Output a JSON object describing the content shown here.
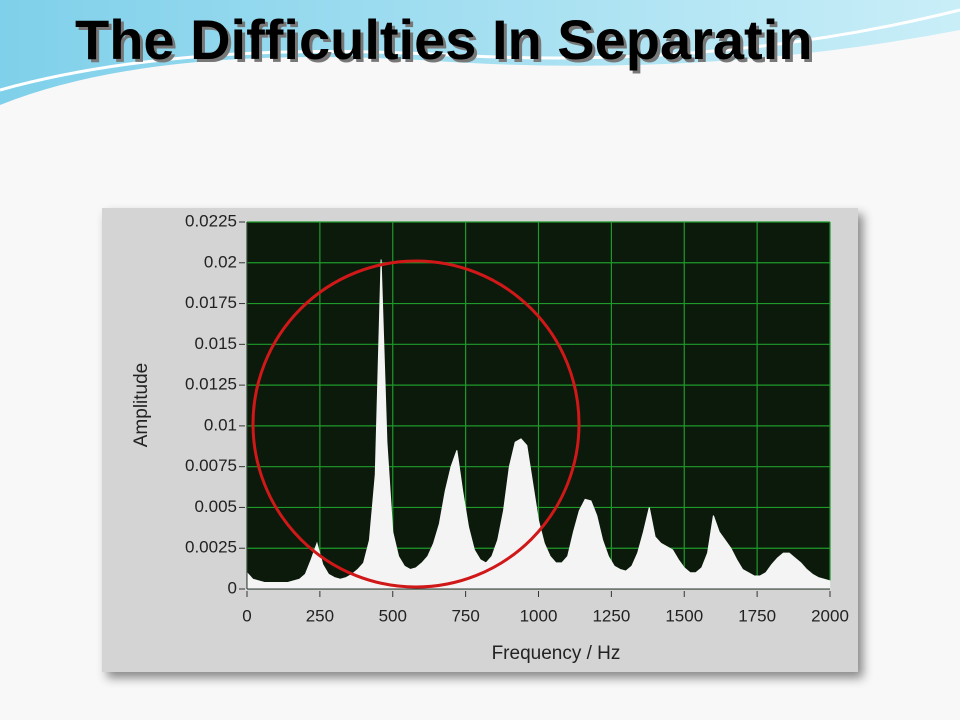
{
  "slide": {
    "title": "The Difficulties In Separatin"
  },
  "chart_data": {
    "type": "area",
    "x_label": "Frequency / Hz",
    "y_label": "Amplitude",
    "x": [
      0,
      20,
      40,
      60,
      80,
      100,
      120,
      140,
      160,
      180,
      200,
      220,
      240,
      260,
      280,
      300,
      320,
      340,
      360,
      380,
      400,
      420,
      440,
      460,
      480,
      500,
      520,
      540,
      560,
      580,
      600,
      620,
      640,
      660,
      680,
      700,
      720,
      740,
      760,
      780,
      800,
      820,
      840,
      860,
      880,
      900,
      920,
      940,
      960,
      980,
      1000,
      1020,
      1040,
      1060,
      1080,
      1100,
      1120,
      1140,
      1160,
      1180,
      1200,
      1220,
      1240,
      1260,
      1280,
      1300,
      1320,
      1340,
      1360,
      1380,
      1400,
      1420,
      1440,
      1460,
      1480,
      1500,
      1520,
      1540,
      1560,
      1580,
      1600,
      1620,
      1640,
      1660,
      1680,
      1700,
      1720,
      1740,
      1760,
      1780,
      1800,
      1820,
      1840,
      1860,
      1880,
      1900,
      1920,
      1940,
      1960,
      1980,
      2000
    ],
    "values": [
      0.001,
      0.0006,
      0.0005,
      0.0004,
      0.0004,
      0.0004,
      0.0004,
      0.0004,
      0.0005,
      0.0006,
      0.0009,
      0.0018,
      0.0028,
      0.0015,
      0.0009,
      0.0007,
      0.0006,
      0.0007,
      0.0009,
      0.0012,
      0.0016,
      0.003,
      0.007,
      0.0202,
      0.009,
      0.0035,
      0.002,
      0.0014,
      0.0012,
      0.0013,
      0.0016,
      0.002,
      0.0028,
      0.004,
      0.006,
      0.0075,
      0.0085,
      0.006,
      0.0038,
      0.0024,
      0.0018,
      0.0016,
      0.002,
      0.003,
      0.0048,
      0.0075,
      0.009,
      0.0092,
      0.0088,
      0.0065,
      0.0042,
      0.0028,
      0.002,
      0.0016,
      0.0016,
      0.002,
      0.0035,
      0.0048,
      0.0055,
      0.0054,
      0.0045,
      0.003,
      0.002,
      0.0014,
      0.0012,
      0.0011,
      0.0014,
      0.0022,
      0.0035,
      0.005,
      0.0032,
      0.0028,
      0.0026,
      0.0024,
      0.0018,
      0.0013,
      0.001,
      0.001,
      0.0013,
      0.0022,
      0.0045,
      0.0035,
      0.003,
      0.0025,
      0.0018,
      0.0012,
      0.001,
      0.0008,
      0.0008,
      0.001,
      0.0015,
      0.0019,
      0.0022,
      0.0022,
      0.0019,
      0.0016,
      0.0012,
      0.0009,
      0.0007,
      0.0006,
      0.0005
    ],
    "color": "#f4f4f4",
    "xlim": [
      0,
      2000
    ],
    "xticks": [
      0,
      250,
      500,
      750,
      1000,
      1250,
      1500,
      1750,
      2000
    ],
    "ylim": [
      0,
      0.0225
    ],
    "yticks": [
      0,
      0.0025,
      0.005,
      0.0075,
      0.01,
      0.0125,
      0.015,
      0.0175,
      0.02,
      0.0225
    ],
    "grid": true,
    "grid_color": "#1f9a2a",
    "plot_background": "#0b1a0b"
  }
}
